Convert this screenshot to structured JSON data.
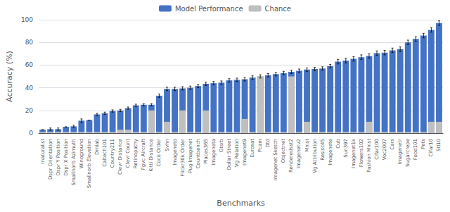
{
  "chart_data": {
    "type": "bar",
    "xlabel": "Benchmarks",
    "ylabel": "Accuracy (%)",
    "categories": [
      "Inaturalist",
      "Dspr Orientation",
      "Dspr Y Position",
      "Dspr X Position",
      "Smallnorb Azimuth",
      "Winoground",
      "Smallnorb Elevation",
      "Dmlab",
      "Caltech101",
      "Country211",
      "Clevr Distance",
      "Clevr Count",
      "Retinopathy",
      "Fgvc Aircraft",
      "Kitti Distance",
      "Coco Order",
      "Svhn",
      "Imageneto",
      "Flickr30k Order",
      "Pug Imagenet",
      "Countbench",
      "Places365",
      "Imageneta",
      "Gtsrb",
      "Dollar Street",
      "Vg Relation",
      "Imagenet9",
      "Eurosat",
      "Pcam",
      "Dtd",
      "Imagenet Sketch",
      "Objectnet",
      "Renderedsst2",
      "Imagenetv2",
      "Mnist",
      "Vg Attribution",
      "Resisc45",
      "Imagenete",
      "Cub",
      "Sun397",
      "Imagenet1k",
      "Flowers102",
      "Fashion Mnist",
      "Cifar100",
      "Voc2007",
      "Cars",
      "Imagenetr",
      "Sugarcrepe",
      "Food101",
      "Pets",
      "Cifar10",
      "Stl10"
    ],
    "series": [
      {
        "name": "Model Performance",
        "color": "#4472C4",
        "values": [
          3.0,
          3.5,
          3.5,
          5.5,
          6.0,
          11.0,
          11.5,
          16.5,
          17.5,
          19.5,
          20.0,
          22.0,
          24.5,
          25.0,
          25.0,
          33.0,
          39.0,
          39.0,
          39.5,
          40.0,
          41.5,
          43.5,
          44.0,
          44.5,
          46.5,
          47.0,
          47.5,
          49.0,
          50.0,
          51.0,
          52.0,
          53.0,
          54.0,
          55.0,
          56.0,
          56.5,
          57.0,
          59.0,
          63.0,
          64.0,
          65.5,
          67.0,
          68.0,
          70.5,
          71.0,
          73.0,
          74.0,
          80.0,
          83.0,
          86.0,
          91.0,
          97.0
        ],
        "error_bars": [
          0.0,
          1.0,
          1.0,
          0.0,
          1.0,
          1.5,
          0.0,
          1.0,
          1.0,
          1.0,
          1.0,
          1.0,
          1.0,
          1.0,
          1.0,
          1.5,
          1.5,
          1.5,
          1.5,
          1.5,
          1.5,
          1.5,
          1.5,
          1.5,
          1.5,
          1.5,
          1.5,
          1.5,
          1.5,
          1.5,
          1.5,
          1.5,
          1.5,
          1.5,
          1.5,
          1.5,
          1.5,
          1.5,
          2.0,
          2.0,
          2.0,
          2.0,
          2.0,
          2.0,
          2.0,
          2.0,
          2.0,
          2.0,
          2.0,
          2.0,
          2.0,
          2.0
        ]
      },
      {
        "name": "Chance",
        "color": "#BFBFBF",
        "values": [
          1.0,
          1.0,
          1.0,
          1.0,
          1.0,
          1.0,
          1.0,
          1.0,
          1.0,
          1.0,
          3.0,
          3.0,
          1.0,
          1.0,
          20.0,
          1.0,
          10.0,
          1.0,
          20.0,
          1.0,
          1.0,
          20.0,
          1.0,
          1.0,
          1.0,
          1.0,
          12.5,
          1.0,
          50.0,
          1.0,
          1.0,
          1.0,
          50.0,
          1.0,
          10.0,
          1.0,
          1.0,
          1.0,
          1.0,
          1.0,
          1.0,
          1.0,
          10.0,
          1.0,
          1.0,
          1.0,
          1.0,
          1.0,
          1.0,
          1.0,
          10.0,
          10.0
        ]
      }
    ],
    "ylim": [
      0,
      100
    ],
    "yticks": [
      0,
      20,
      40,
      60,
      80,
      100
    ],
    "grid": true,
    "legend": "top"
  }
}
